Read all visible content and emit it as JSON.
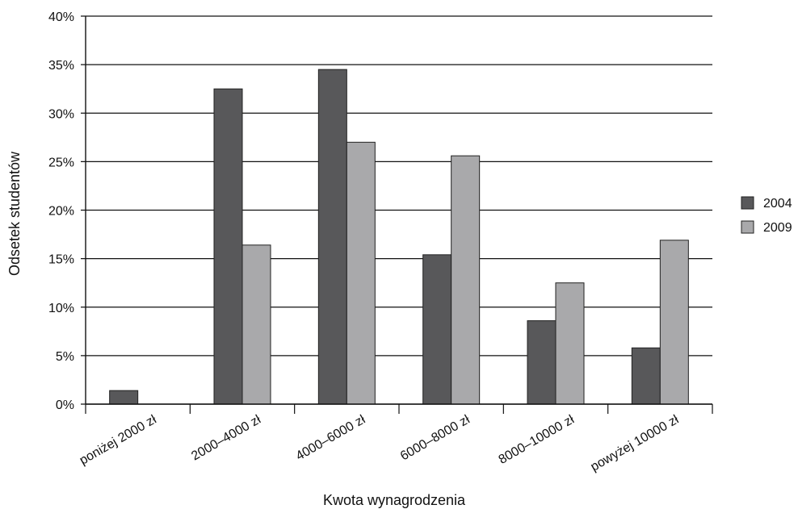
{
  "chart_data": {
    "type": "bar",
    "title": "",
    "xlabel": "Kwota wynagrodzenia",
    "ylabel": "Odsetek studentów",
    "categories": [
      "poniżej 2000 zł",
      "2000–4000 zł",
      "4000–6000 zł",
      "6000–8000 zł",
      "8000–10000 zł",
      "powyżej 10000 zł"
    ],
    "series": [
      {
        "name": "2004",
        "color": "#58585a",
        "values": [
          1.4,
          32.5,
          34.5,
          15.4,
          8.6,
          5.8
        ]
      },
      {
        "name": "2009",
        "color": "#a9a9ab",
        "values": [
          0,
          16.4,
          27.0,
          25.6,
          12.5,
          16.9
        ]
      }
    ],
    "ylim": [
      0,
      40
    ],
    "yticks": [
      0,
      5,
      10,
      15,
      20,
      25,
      30,
      35,
      40
    ],
    "ytick_labels": [
      "0%",
      "5%",
      "10%",
      "15%",
      "20%",
      "25%",
      "30%",
      "35%",
      "40%"
    ],
    "grid": true,
    "legend_position": "right"
  }
}
